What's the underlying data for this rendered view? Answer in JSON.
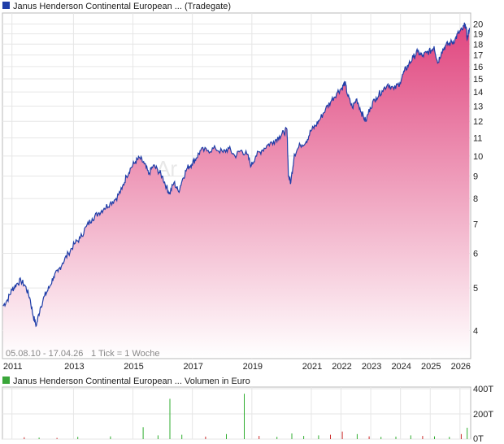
{
  "chart_data": [
    {
      "type": "area",
      "title": "Janus Henderson Continental European ... (Tradegate)",
      "footer": "05.08.10 - 17.04.26",
      "tick_note": "1 Tick = 1 Woche",
      "watermark": "Ar",
      "y_scale": "log",
      "ylim": [
        3.45,
        21.2
      ],
      "y_ticks": [
        "20",
        "19",
        "18",
        "17",
        "16",
        "15",
        "14",
        "13",
        "12",
        "11",
        "10",
        "9",
        "8",
        "7",
        "6",
        "5",
        "4"
      ],
      "x_ticks": [
        "2011",
        "2013",
        "2015",
        "2017",
        "2019",
        "2021",
        "2022",
        "2023",
        "2024",
        "2025",
        "2026"
      ],
      "grid": true,
      "colors": {
        "line": "#1f3ea8",
        "fill_top": "#e0457e",
        "fill_bottom": "#ffffff",
        "legend": "#1f3ea8"
      },
      "series": [
        {
          "name": "Janus Henderson Continental European ... (Tradegate)",
          "points": [
            [
              2010.6,
              4.55
            ],
            [
              2010.75,
              4.7
            ],
            [
              2010.9,
              4.95
            ],
            [
              2011.05,
              5.1
            ],
            [
              2011.2,
              5.2
            ],
            [
              2011.35,
              5.05
            ],
            [
              2011.5,
              4.75
            ],
            [
              2011.62,
              4.3
            ],
            [
              2011.72,
              4.1
            ],
            [
              2011.85,
              4.5
            ],
            [
              2012.0,
              4.8
            ],
            [
              2012.15,
              5.0
            ],
            [
              2012.3,
              5.3
            ],
            [
              2012.45,
              5.45
            ],
            [
              2012.6,
              5.7
            ],
            [
              2012.8,
              6.0
            ],
            [
              2013.0,
              6.3
            ],
            [
              2013.2,
              6.5
            ],
            [
              2013.4,
              6.9
            ],
            [
              2013.6,
              7.2
            ],
            [
              2013.8,
              7.4
            ],
            [
              2014.0,
              7.6
            ],
            [
              2014.2,
              7.8
            ],
            [
              2014.4,
              8.0
            ],
            [
              2014.6,
              8.4
            ],
            [
              2014.75,
              9.0
            ],
            [
              2014.9,
              9.4
            ],
            [
              2015.05,
              9.7
            ],
            [
              2015.2,
              9.9
            ],
            [
              2015.35,
              9.6
            ],
            [
              2015.5,
              9.1
            ],
            [
              2015.65,
              9.5
            ],
            [
              2015.8,
              9.3
            ],
            [
              2015.95,
              9.0
            ],
            [
              2016.1,
              8.5
            ],
            [
              2016.2,
              8.2
            ],
            [
              2016.35,
              8.7
            ],
            [
              2016.5,
              8.3
            ],
            [
              2016.65,
              8.9
            ],
            [
              2016.8,
              9.4
            ],
            [
              2016.95,
              9.6
            ],
            [
              2017.1,
              9.9
            ],
            [
              2017.25,
              10.3
            ],
            [
              2017.5,
              10.3
            ],
            [
              2017.75,
              10.4
            ],
            [
              2018.0,
              10.2
            ],
            [
              2018.2,
              10.4
            ],
            [
              2018.4,
              10.0
            ],
            [
              2018.6,
              10.3
            ],
            [
              2018.8,
              10.1
            ],
            [
              2018.95,
              9.5
            ],
            [
              2019.1,
              10.0
            ],
            [
              2019.3,
              10.3
            ],
            [
              2019.5,
              10.6
            ],
            [
              2019.7,
              10.8
            ],
            [
              2019.9,
              11.1
            ],
            [
              2020.05,
              11.3
            ],
            [
              2020.15,
              11.5
            ],
            [
              2020.2,
              9.0
            ],
            [
              2020.28,
              8.7
            ],
            [
              2020.4,
              10.1
            ],
            [
              2020.6,
              10.6
            ],
            [
              2020.8,
              10.8
            ],
            [
              2020.95,
              11.4
            ],
            [
              2021.1,
              11.7
            ],
            [
              2021.25,
              12.1
            ],
            [
              2021.45,
              12.8
            ],
            [
              2021.65,
              13.4
            ],
            [
              2021.85,
              14.0
            ],
            [
              2022.0,
              14.3
            ],
            [
              2022.1,
              14.7
            ],
            [
              2022.2,
              13.7
            ],
            [
              2022.35,
              12.9
            ],
            [
              2022.5,
              13.5
            ],
            [
              2022.65,
              12.6
            ],
            [
              2022.8,
              12.0
            ],
            [
              2022.95,
              12.9
            ],
            [
              2023.15,
              13.6
            ],
            [
              2023.35,
              14.1
            ],
            [
              2023.55,
              14.6
            ],
            [
              2023.75,
              14.2
            ],
            [
              2023.95,
              14.7
            ],
            [
              2024.1,
              15.6
            ],
            [
              2024.25,
              16.2
            ],
            [
              2024.4,
              16.8
            ],
            [
              2024.55,
              17.3
            ],
            [
              2024.7,
              16.9
            ],
            [
              2024.85,
              17.2
            ],
            [
              2025.0,
              17.4
            ],
            [
              2025.1,
              17.8
            ],
            [
              2025.22,
              16.3
            ],
            [
              2025.35,
              17.3
            ],
            [
              2025.5,
              17.9
            ],
            [
              2025.65,
              18.1
            ],
            [
              2025.8,
              18.4
            ],
            [
              2025.92,
              19.1
            ],
            [
              2026.05,
              19.4
            ],
            [
              2026.15,
              20.0
            ],
            [
              2026.22,
              18.5
            ],
            [
              2026.29,
              19.6
            ]
          ]
        }
      ]
    },
    {
      "type": "bar",
      "title": "Janus Henderson Continental European ... Volumen in Euro",
      "y_ticks": [
        "400T",
        "200T",
        "0T"
      ],
      "ylim": [
        0,
        400
      ],
      "grid": true,
      "colors": {
        "up": "#2fae2f",
        "down": "#cc2a2a",
        "legend": "#3aa63a"
      },
      "bars": [
        [
          2011.3,
          15,
          "down"
        ],
        [
          2011.8,
          12,
          "up"
        ],
        [
          2012.4,
          10,
          "down"
        ],
        [
          2013.1,
          18,
          "up"
        ],
        [
          2014.2,
          22,
          "up"
        ],
        [
          2015.3,
          95,
          "up"
        ],
        [
          2015.8,
          30,
          "up"
        ],
        [
          2016.2,
          320,
          "up"
        ],
        [
          2016.6,
          35,
          "up"
        ],
        [
          2017.4,
          20,
          "down"
        ],
        [
          2018.1,
          40,
          "up"
        ],
        [
          2018.7,
          360,
          "up"
        ],
        [
          2019.2,
          25,
          "down"
        ],
        [
          2019.8,
          18,
          "up"
        ],
        [
          2020.3,
          45,
          "up"
        ],
        [
          2020.7,
          25,
          "up"
        ],
        [
          2021.2,
          30,
          "up"
        ],
        [
          2021.6,
          35,
          "down"
        ],
        [
          2022.0,
          60,
          "down"
        ],
        [
          2022.5,
          40,
          "up"
        ],
        [
          2022.9,
          22,
          "down"
        ],
        [
          2023.3,
          18,
          "up"
        ],
        [
          2023.8,
          20,
          "up"
        ],
        [
          2024.3,
          30,
          "up"
        ],
        [
          2024.7,
          25,
          "down"
        ],
        [
          2025.1,
          22,
          "up"
        ],
        [
          2025.6,
          18,
          "up"
        ],
        [
          2026.0,
          40,
          "down"
        ],
        [
          2026.2,
          90,
          "up"
        ]
      ]
    }
  ]
}
